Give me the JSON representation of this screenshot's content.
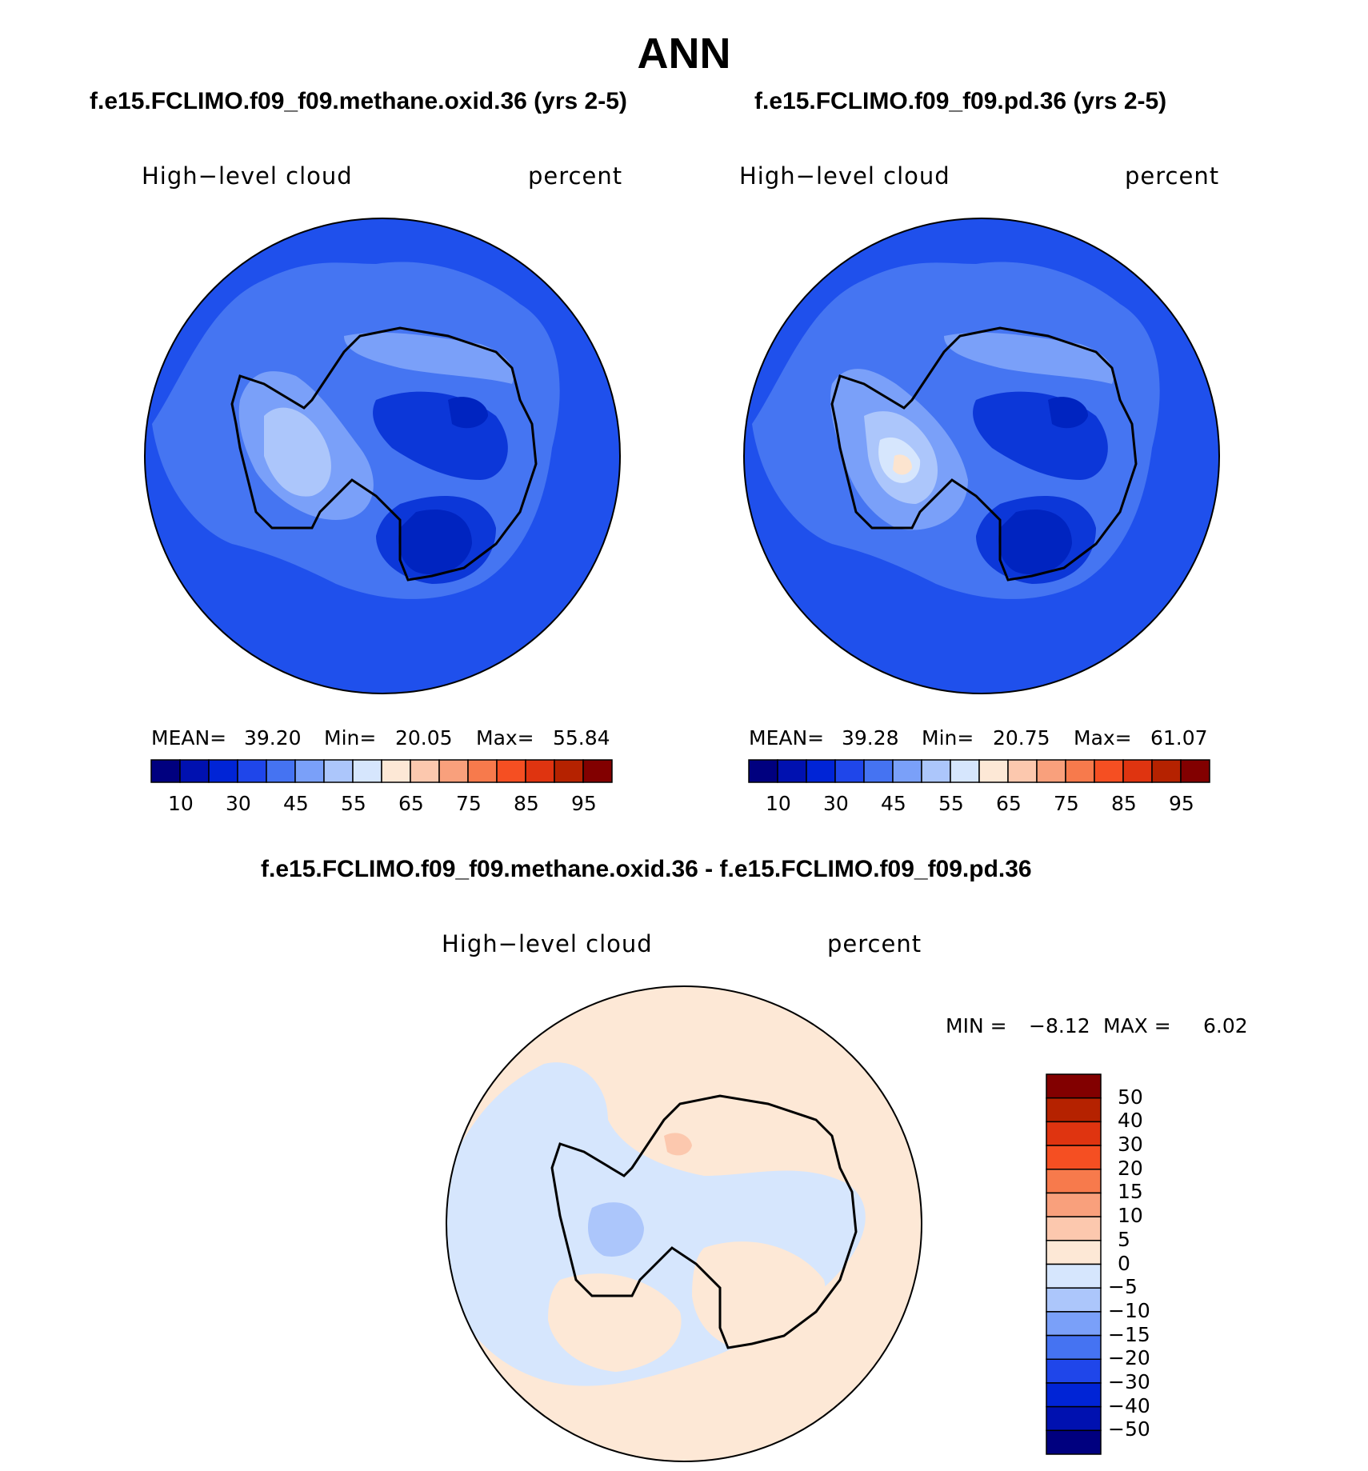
{
  "page": {
    "title": "ANN"
  },
  "panels": [
    {
      "case_title": "f.e15.FCLIMO.f09_f09.methane.oxid.36 (yrs 2-5)",
      "variable": "High−level cloud",
      "units": "percent",
      "stats": {
        "mean_label": "MEAN=",
        "mean": "39.20",
        "min_label": "Min=",
        "min": "20.05",
        "max_label": "Max=",
        "max": "55.84"
      }
    },
    {
      "case_title": "f.e15.FCLIMO.f09_f09.pd.36 (yrs 2-5)",
      "variable": "High−level cloud",
      "units": "percent",
      "stats": {
        "mean_label": "MEAN=",
        "mean": "39.28",
        "min_label": "Min=",
        "min": "20.75",
        "max_label": "Max=",
        "max": "61.07"
      }
    }
  ],
  "diff_panel": {
    "case_title": "f.e15.FCLIMO.f09_f09.methane.oxid.36 - f.e15.FCLIMO.f09_f09.pd.36",
    "variable": "High−level cloud",
    "units": "percent",
    "stats": {
      "min_label": "MIN =",
      "min": "−8.12",
      "max_label": "MAX =",
      "max": "6.02"
    }
  },
  "colorbar_abs": {
    "colors": [
      "#00007f",
      "#0011b0",
      "#0024d6",
      "#1f46ea",
      "#4573f2",
      "#7aa0f9",
      "#acc6fb",
      "#d6e6fd",
      "#fde8d6",
      "#fcc8ae",
      "#f9a07c",
      "#f77a4c",
      "#f54f22",
      "#df3410",
      "#b52200",
      "#820000"
    ],
    "tick_labels": [
      "10",
      "30",
      "45",
      "55",
      "65",
      "75",
      "85",
      "95"
    ]
  },
  "colorbar_diff": {
    "colors": [
      "#820000",
      "#b52200",
      "#df3410",
      "#f54f22",
      "#f77a4c",
      "#f9a07c",
      "#fcc8ae",
      "#fde8d6",
      "#d6e6fd",
      "#acc6fb",
      "#7aa0f9",
      "#4573f2",
      "#1f46ea",
      "#0024d6",
      "#0011b0",
      "#00007f"
    ],
    "tick_labels": [
      "50",
      "40",
      "30",
      "20",
      "15",
      "10",
      "5",
      "0",
      "−5",
      "−10",
      "−15",
      "−20",
      "−30",
      "−40",
      "−50"
    ]
  },
  "map_colors": {
    "ocean_mean": "#1f50ec",
    "band_1": "#4575f2",
    "band_2": "#7aa0f9",
    "band_3": "#acc6fb",
    "band_4": "#d6e6fd",
    "low": "#0c37d8",
    "lowest": "#0024c0",
    "warm": "#fce4cf",
    "diff_pos": "#fde8d6",
    "diff_neg": "#d6e6fd",
    "diff_neg2": "#acc6fb",
    "diff_pos2": "#fcc8ae"
  }
}
